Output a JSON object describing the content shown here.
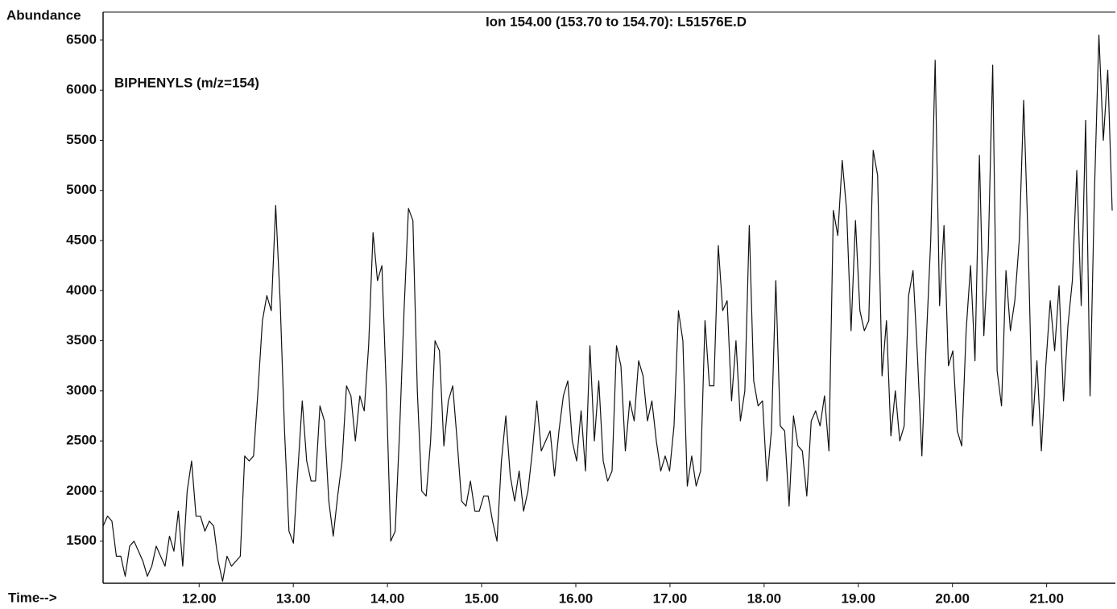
{
  "chart_data": {
    "type": "line",
    "title": "Ion 154.00 (153.70 to 154.70): L51576E.D",
    "y_label": "Abundance",
    "x_label": "Time-->",
    "annotation": "BIPHENYLS (m/z=154)",
    "color": "#111111",
    "xlim": [
      10.98,
      21.73
    ],
    "ylim": [
      1080,
      6780
    ],
    "yticks": [
      1500,
      2000,
      2500,
      3000,
      3500,
      4000,
      4500,
      5000,
      5500,
      6000,
      6500
    ],
    "xticks": [
      {
        "value": 12,
        "label": "12.00"
      },
      {
        "value": 13,
        "label": "13.00"
      },
      {
        "value": 14,
        "label": "14.00"
      },
      {
        "value": 15,
        "label": "15.00"
      },
      {
        "value": 16,
        "label": "16.00"
      },
      {
        "value": 17,
        "label": "17.00"
      },
      {
        "value": 18,
        "label": "18.00"
      },
      {
        "value": 19,
        "label": "19.00"
      },
      {
        "value": 20,
        "label": "20.00"
      },
      {
        "value": 21,
        "label": "21.00"
      }
    ],
    "x": [
      10.98,
      11.027,
      11.074,
      11.121,
      11.168,
      11.215,
      11.262,
      11.309,
      11.356,
      11.403,
      11.45,
      11.497,
      11.544,
      11.591,
      11.638,
      11.685,
      11.732,
      11.779,
      11.826,
      11.873,
      11.92,
      11.967,
      12.014,
      12.061,
      12.108,
      12.155,
      12.202,
      12.249,
      12.296,
      12.343,
      12.39,
      12.437,
      12.484,
      12.531,
      12.578,
      12.625,
      12.672,
      12.719,
      12.766,
      12.813,
      12.86,
      12.907,
      12.954,
      13.001,
      13.048,
      13.095,
      13.142,
      13.189,
      13.236,
      13.283,
      13.33,
      13.377,
      13.424,
      13.471,
      13.518,
      13.565,
      13.612,
      13.659,
      13.706,
      13.753,
      13.8,
      13.847,
      13.894,
      13.941,
      13.988,
      14.035,
      14.082,
      14.129,
      14.176,
      14.223,
      14.27,
      14.317,
      14.364,
      14.411,
      14.458,
      14.505,
      14.552,
      14.599,
      14.646,
      14.693,
      14.74,
      14.787,
      14.834,
      14.881,
      14.928,
      14.975,
      15.022,
      15.069,
      15.116,
      15.163,
      15.21,
      15.257,
      15.304,
      15.351,
      15.398,
      15.445,
      15.492,
      15.539,
      15.586,
      15.633,
      15.68,
      15.727,
      15.774,
      15.821,
      15.868,
      15.915,
      15.962,
      16.009,
      16.056,
      16.103,
      16.15,
      16.197,
      16.244,
      16.291,
      16.338,
      16.385,
      16.432,
      16.479,
      16.526,
      16.573,
      16.62,
      16.667,
      16.714,
      16.761,
      16.808,
      16.855,
      16.902,
      16.949,
      16.996,
      17.043,
      17.09,
      17.137,
      17.184,
      17.231,
      17.278,
      17.325,
      17.372,
      17.419,
      17.466,
      17.513,
      17.56,
      17.607,
      17.654,
      17.701,
      17.748,
      17.795,
      17.842,
      17.889,
      17.936,
      17.983,
      18.03,
      18.077,
      18.124,
      18.171,
      18.218,
      18.265,
      18.312,
      18.359,
      18.406,
      18.453,
      18.5,
      18.547,
      18.594,
      18.641,
      18.688,
      18.735,
      18.782,
      18.829,
      18.876,
      18.923,
      18.97,
      19.017,
      19.064,
      19.111,
      19.158,
      19.205,
      19.252,
      19.299,
      19.346,
      19.393,
      19.44,
      19.487,
      19.534,
      19.581,
      19.628,
      19.675,
      19.722,
      19.769,
      19.816,
      19.863,
      19.91,
      19.957,
      20.004,
      20.051,
      20.098,
      20.145,
      20.192,
      20.239,
      20.286,
      20.333,
      20.38,
      20.427,
      20.474,
      20.521,
      20.568,
      20.615,
      20.662,
      20.709,
      20.756,
      20.803,
      20.85,
      20.897,
      20.944,
      20.991,
      21.038,
      21.085,
      21.132,
      21.179,
      21.226,
      21.273,
      21.32,
      21.367,
      21.414,
      21.461,
      21.508,
      21.555,
      21.602,
      21.649,
      21.696
    ],
    "values": [
      1650,
      1750,
      1700,
      1350,
      1350,
      1150,
      1450,
      1500,
      1400,
      1300,
      1150,
      1250,
      1450,
      1350,
      1250,
      1550,
      1400,
      1800,
      1250,
      2000,
      2300,
      1750,
      1750,
      1600,
      1700,
      1650,
      1300,
      1100,
      1350,
      1250,
      1300,
      1350,
      2350,
      2300,
      2350,
      3000,
      3700,
      3950,
      3800,
      4850,
      3900,
      2600,
      1600,
      1480,
      2200,
      2900,
      2300,
      2100,
      2100,
      2850,
      2700,
      1900,
      1550,
      1950,
      2300,
      3050,
      2950,
      2500,
      2950,
      2800,
      3450,
      4580,
      4100,
      4250,
      3000,
      1500,
      1600,
      2600,
      3800,
      4820,
      4700,
      3000,
      2000,
      1950,
      2500,
      3500,
      3400,
      2450,
      2900,
      3050,
      2500,
      1900,
      1850,
      2100,
      1800,
      1800,
      1950,
      1950,
      1700,
      1500,
      2300,
      2750,
      2150,
      1900,
      2200,
      1800,
      2000,
      2400,
      2900,
      2400,
      2500,
      2600,
      2150,
      2600,
      2950,
      3100,
      2500,
      2300,
      2800,
      2200,
      3450,
      2500,
      3100,
      2300,
      2100,
      2200,
      3450,
      3250,
      2400,
      2900,
      2700,
      3300,
      3150,
      2700,
      2900,
      2500,
      2200,
      2350,
      2200,
      2650,
      3800,
      3500,
      2050,
      2350,
      2050,
      2200,
      3700,
      3050,
      3050,
      4450,
      3800,
      3900,
      2900,
      3500,
      2700,
      3000,
      4650,
      3100,
      2850,
      2900,
      2100,
      2600,
      4100,
      2650,
      2600,
      1850,
      2750,
      2450,
      2400,
      1950,
      2700,
      2800,
      2650,
      2950,
      2400,
      4800,
      4550,
      5300,
      4800,
      3600,
      4700,
      3800,
      3600,
      3700,
      5400,
      5150,
      3150,
      3700,
      2550,
      3000,
      2500,
      2650,
      3950,
      4200,
      3350,
      2350,
      3500,
      4500,
      6300,
      3850,
      4650,
      3250,
      3400,
      2600,
      2450,
      3600,
      4250,
      3300,
      5350,
      3550,
      4400,
      6250,
      3200,
      2850,
      4200,
      3600,
      3900,
      4500,
      5900,
      4500,
      2650,
      3300,
      2400,
      3250,
      3900,
      3400,
      4050,
      2900,
      3650,
      4100,
      5200,
      3850,
      5700,
      2950,
      5000,
      6550,
      5500,
      6200,
      4800
    ]
  }
}
